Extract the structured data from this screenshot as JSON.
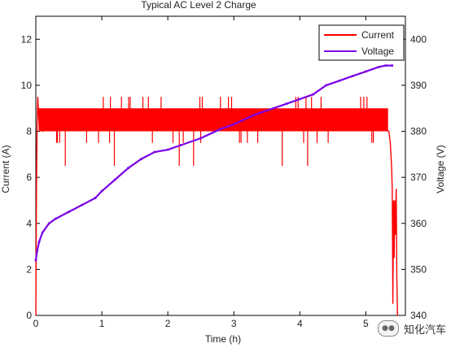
{
  "chart_data": {
    "type": "line",
    "title": "Typical AC Level 2 Charge",
    "xlabel": "Time (h)",
    "ylabel_left": "Current (A)",
    "ylabel_right": "Voltage (V)",
    "xlim": [
      0,
      5.6
    ],
    "ylim_left": [
      0,
      13
    ],
    "ylim_right": [
      340,
      405
    ],
    "xticks": [
      "0",
      "1",
      "2",
      "3",
      "4",
      "5"
    ],
    "yticks_left": [
      "0",
      "2",
      "4",
      "6",
      "8",
      "10",
      "12"
    ],
    "yticks_right": [
      "340",
      "350",
      "360",
      "370",
      "380",
      "390",
      "400"
    ],
    "legend_position": "top-right",
    "series": [
      {
        "name": "Current",
        "color": "#ff0000",
        "axis": "left",
        "x": [
          0,
          0.01,
          0.02,
          0.03,
          0.05,
          0.1,
          0.2,
          0.4,
          0.6,
          0.8,
          1.0,
          1.5,
          2.0,
          2.5,
          3.0,
          3.5,
          4.0,
          4.5,
          5.0,
          5.2,
          5.35,
          5.37,
          5.39,
          5.4,
          5.41,
          5.42,
          5.43,
          5.44,
          5.45,
          5.46,
          5.47,
          5.48
        ],
        "values": [
          0,
          5.5,
          8.4,
          9.5,
          8.2,
          8.0,
          8.2,
          8.3,
          8.2,
          8.3,
          8.2,
          8.2,
          8.3,
          8.2,
          8.2,
          8.2,
          8.2,
          8.1,
          8.2,
          8.2,
          8.0,
          7.5,
          6.5,
          5.5,
          0.5,
          5.0,
          2.5,
          5.0,
          3.5,
          5.5,
          1.5,
          0
        ]
      },
      {
        "name": "Voltage",
        "color": "#7a00e8",
        "axis": "right",
        "x": [
          0,
          0.02,
          0.05,
          0.1,
          0.2,
          0.3,
          0.5,
          0.7,
          0.9,
          1.0,
          1.2,
          1.4,
          1.6,
          1.8,
          2.0,
          2.2,
          2.5,
          2.8,
          3.0,
          3.3,
          3.6,
          3.8,
          4.0,
          4.2,
          4.4,
          4.6,
          4.8,
          5.0,
          5.2,
          5.3,
          5.4
        ],
        "values": [
          352,
          354,
          356,
          358,
          360,
          361,
          362.5,
          364,
          365.5,
          367,
          369.5,
          372,
          374,
          375.5,
          376,
          377,
          378.5,
          380.5,
          381.5,
          383.5,
          385,
          386,
          387,
          388,
          390,
          391,
          392,
          393,
          394,
          394.3,
          394.3
        ]
      }
    ]
  },
  "watermark": {
    "icon": "wechat-icon",
    "text": "知化汽车"
  }
}
